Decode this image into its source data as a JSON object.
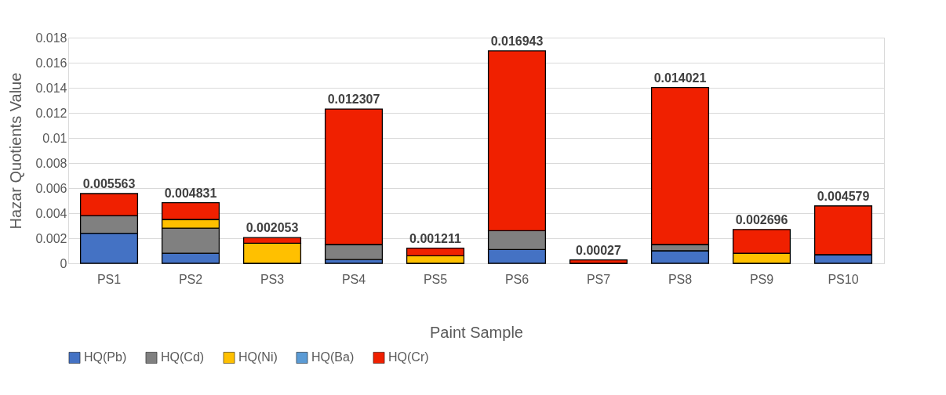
{
  "chart_data": {
    "type": "bar",
    "stacked": true,
    "xlabel": "Paint Sample",
    "ylabel": "Hazar Quotients Value",
    "categories": [
      "PS1",
      "PS2",
      "PS3",
      "PS4",
      "PS5",
      "PS6",
      "PS7",
      "PS8",
      "PS9",
      "PS10"
    ],
    "series": [
      {
        "name": "HQ(Pb)",
        "color": "#4472c4",
        "values": [
          0.0024,
          0.0008,
          0,
          0.0003,
          0,
          0.0011,
          0,
          0.001,
          0,
          0.0007
        ]
      },
      {
        "name": "HQ(Cd)",
        "color": "#808080",
        "values": [
          0.0014,
          0.002,
          0,
          0.0012,
          0,
          0.0015,
          0,
          0.0005,
          0,
          0
        ]
      },
      {
        "name": "HQ(Ni)",
        "color": "#ffc000",
        "values": [
          0,
          0.0007,
          0.0016,
          0,
          0.0006,
          0,
          0,
          0,
          0.0008,
          0
        ]
      },
      {
        "name": "HQ(Ba)",
        "color": "#5b9bd5",
        "values": [
          0,
          0,
          0,
          0,
          0,
          0,
          0,
          0,
          0,
          0
        ]
      },
      {
        "name": "HQ(Cr)",
        "color": "#f02000",
        "values": [
          0.001763,
          0.001331,
          0.000453,
          0.010807,
          0.000611,
          0.014343,
          0.00027,
          0.012521,
          0.001896,
          0.003879
        ]
      }
    ],
    "totals": [
      "0.005563",
      "0.004831",
      "0.002053",
      "0.012307",
      "0.001211",
      "0.016943",
      "0.00027",
      "0.014021",
      "0.002696",
      "0.004579"
    ],
    "ylim": [
      0,
      0.018
    ],
    "yticks": [
      0,
      0.002,
      0.004,
      0.006,
      0.008,
      0.01,
      0.012,
      0.014,
      0.016,
      0.018
    ],
    "grid": "y",
    "legend": "bottom"
  }
}
